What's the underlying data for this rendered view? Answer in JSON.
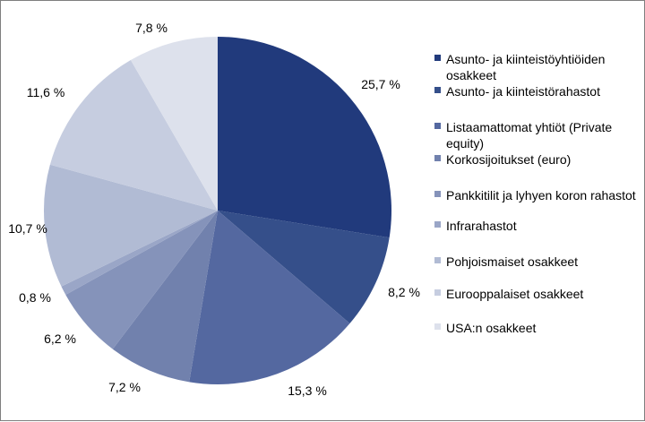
{
  "chart_data": {
    "type": "pie",
    "categories": [
      "Asunto- ja kiinteistöyhtiöiden osakkeet",
      "Asunto- ja kiinteistörahastot",
      "Listaamattomat yhtiöt (Private equity)",
      "Korkosijoitukset (euro)",
      "Pankkitilit ja lyhyen koron rahastot",
      "Infrarahastot",
      "Pohjoismaiset osakkeet",
      "Eurooppalaiset osakkeet",
      "USA:n osakkeet"
    ],
    "values": [
      25.7,
      8.2,
      15.3,
      7.2,
      6.2,
      0.8,
      10.7,
      11.6,
      7.8
    ],
    "value_labels": [
      "25,7 %",
      "8,2 %",
      "15,3 %",
      "7,2 %",
      "6,2 %",
      "0,8 %",
      "10,7 %",
      "11,6 %",
      "7,8 %"
    ],
    "colors": [
      "#213a7c",
      "#354f8a",
      "#5468a0",
      "#7181ad",
      "#8593ba",
      "#9aa6c7",
      "#b1bbd4",
      "#c6cde0",
      "#dde1ec"
    ],
    "start_angle": "12 o'clock",
    "direction": "clockwise",
    "legend_position": "right"
  }
}
